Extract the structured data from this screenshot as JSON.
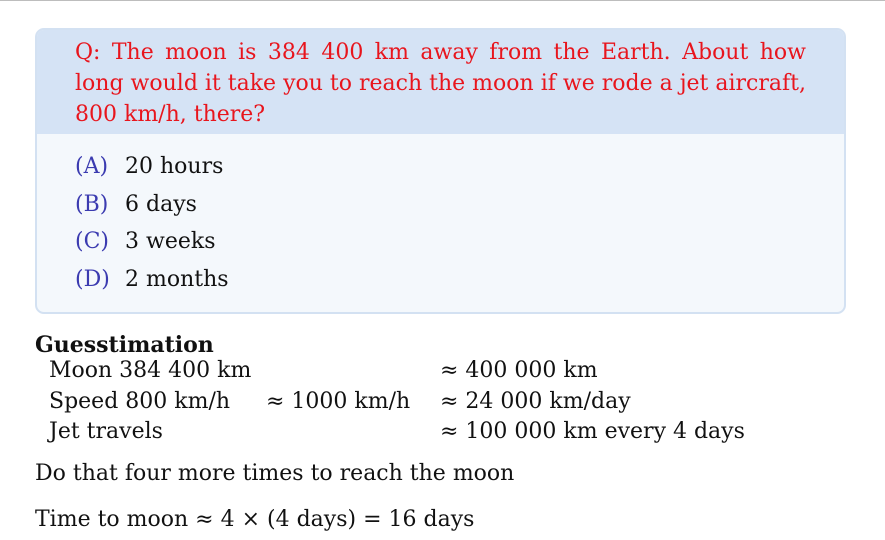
{
  "question": {
    "text": "Q: The moon is 384 400 km away from the Earth. About how long would it take you to reach the moon if we rode a jet aircraft, 800 km/h, there?",
    "color": "#e8151d"
  },
  "options": [
    {
      "letter": "(A)",
      "text": "20 hours"
    },
    {
      "letter": "(B)",
      "text": "6 days"
    },
    {
      "letter": "(C)",
      "text": "3 weeks"
    },
    {
      "letter": "(D)",
      "text": "2 months"
    }
  ],
  "guesstimation": {
    "title": "Guesstimation",
    "rows": [
      {
        "label": "Moon 384 400 km",
        "approx": "",
        "result": "≈ 400 000 km"
      },
      {
        "label": "Speed 800 km/h",
        "approx": "≈ 1000 km/h",
        "result": "≈ 24 000 km/day"
      },
      {
        "label": "Jet travels",
        "approx": "",
        "result": "≈ 100 000 km every 4 days"
      }
    ]
  },
  "conclusion": "Do that four more times to reach the moon",
  "answer": "Time to moon ≈ 4 × (4 days) = 16 days"
}
